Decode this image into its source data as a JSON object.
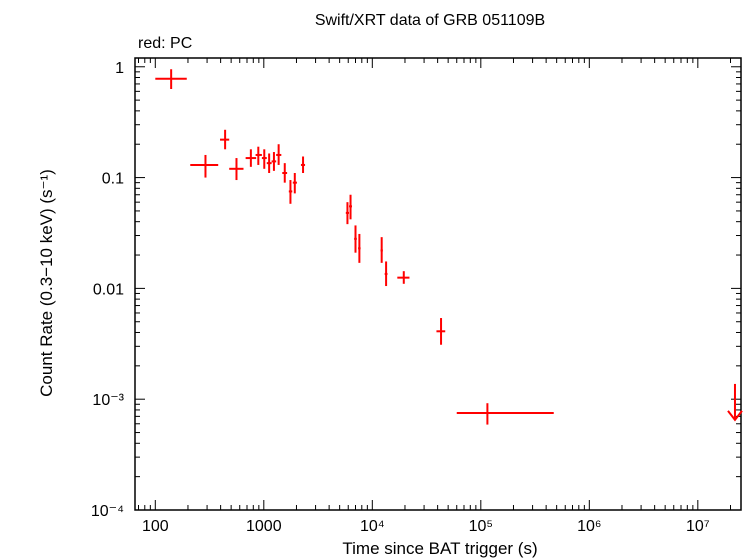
{
  "chart_data": {
    "type": "scatter",
    "title": "Swift/XRT data of GRB 051109B",
    "subtitle": "red: PC",
    "xlabel": "Time since BAT trigger (s)",
    "ylabel": "Count Rate (0.3−10 keV) (s⁻¹)",
    "xscale": "log",
    "yscale": "log",
    "xlim": [
      65,
      25000000
    ],
    "ylim": [
      0.0001,
      1.2
    ],
    "x_ticks": [
      {
        "value": 100,
        "label": "100"
      },
      {
        "value": 1000,
        "label": "1000"
      },
      {
        "value": 10000,
        "label": "10⁴"
      },
      {
        "value": 100000,
        "label": "10⁵"
      },
      {
        "value": 1000000,
        "label": "10⁶"
      },
      {
        "value": 10000000,
        "label": "10⁷"
      }
    ],
    "y_ticks": [
      {
        "value": 1,
        "label": "1"
      },
      {
        "value": 0.1,
        "label": "0.1"
      },
      {
        "value": 0.01,
        "label": "0.01"
      },
      {
        "value": 0.001,
        "label": "10⁻³"
      },
      {
        "value": 0.0001,
        "label": "10⁻⁴"
      }
    ],
    "grid": false,
    "series": [
      {
        "color": "#ff0000",
        "points": [
          {
            "x": 140,
            "xlo": 100,
            "xhi": 195,
            "y": 0.78,
            "ylo": 0.63,
            "yhi": 0.95
          },
          {
            "x": 290,
            "xlo": 210,
            "xhi": 380,
            "y": 0.13,
            "ylo": 0.1,
            "yhi": 0.16
          },
          {
            "x": 440,
            "xlo": 395,
            "xhi": 480,
            "y": 0.22,
            "ylo": 0.18,
            "yhi": 0.27
          },
          {
            "x": 560,
            "xlo": 480,
            "xhi": 650,
            "y": 0.12,
            "ylo": 0.095,
            "yhi": 0.15
          },
          {
            "x": 760,
            "xlo": 680,
            "xhi": 850,
            "y": 0.15,
            "ylo": 0.125,
            "yhi": 0.18
          },
          {
            "x": 890,
            "xlo": 840,
            "xhi": 960,
            "y": 0.16,
            "ylo": 0.13,
            "yhi": 0.19
          },
          {
            "x": 1010,
            "xlo": 960,
            "xhi": 1065,
            "y": 0.15,
            "ylo": 0.12,
            "yhi": 0.18
          },
          {
            "x": 1120,
            "xlo": 1065,
            "xhi": 1180,
            "y": 0.135,
            "ylo": 0.11,
            "yhi": 0.165
          },
          {
            "x": 1240,
            "xlo": 1180,
            "xhi": 1300,
            "y": 0.14,
            "ylo": 0.115,
            "yhi": 0.17
          },
          {
            "x": 1370,
            "xlo": 1300,
            "xhi": 1450,
            "y": 0.16,
            "ylo": 0.13,
            "yhi": 0.2
          },
          {
            "x": 1560,
            "xlo": 1480,
            "xhi": 1640,
            "y": 0.11,
            "ylo": 0.09,
            "yhi": 0.135
          },
          {
            "x": 1760,
            "xlo": 1700,
            "xhi": 1830,
            "y": 0.075,
            "ylo": 0.058,
            "yhi": 0.095
          },
          {
            "x": 1930,
            "xlo": 1850,
            "xhi": 2020,
            "y": 0.09,
            "ylo": 0.072,
            "yhi": 0.11
          },
          {
            "x": 2300,
            "xlo": 2200,
            "xhi": 2400,
            "y": 0.13,
            "ylo": 0.11,
            "yhi": 0.155
          },
          {
            "x": 5900,
            "xlo": 5700,
            "xhi": 6100,
            "y": 0.048,
            "ylo": 0.038,
            "yhi": 0.06
          },
          {
            "x": 6300,
            "xlo": 6100,
            "xhi": 6500,
            "y": 0.055,
            "ylo": 0.042,
            "yhi": 0.07
          },
          {
            "x": 7000,
            "xlo": 6800,
            "xhi": 7200,
            "y": 0.028,
            "ylo": 0.021,
            "yhi": 0.037
          },
          {
            "x": 7600,
            "xlo": 7400,
            "xhi": 7800,
            "y": 0.023,
            "ylo": 0.017,
            "yhi": 0.031
          },
          {
            "x": 12200,
            "xlo": 11900,
            "xhi": 12500,
            "y": 0.022,
            "ylo": 0.017,
            "yhi": 0.029
          },
          {
            "x": 13400,
            "xlo": 13000,
            "xhi": 13800,
            "y": 0.0135,
            "ylo": 0.0105,
            "yhi": 0.0175
          },
          {
            "x": 19500,
            "xlo": 17000,
            "xhi": 22000,
            "y": 0.0125,
            "ylo": 0.011,
            "yhi": 0.0143
          },
          {
            "x": 43000,
            "xlo": 39000,
            "xhi": 47000,
            "y": 0.0041,
            "ylo": 0.0031,
            "yhi": 0.0054
          },
          {
            "x": 115000,
            "xlo": 60000,
            "xhi": 470000,
            "y": 0.00075,
            "ylo": 0.00059,
            "yhi": 0.00092
          }
        ],
        "upper_limits": [
          {
            "x": 22000000,
            "y": 0.00065
          }
        ]
      }
    ]
  }
}
